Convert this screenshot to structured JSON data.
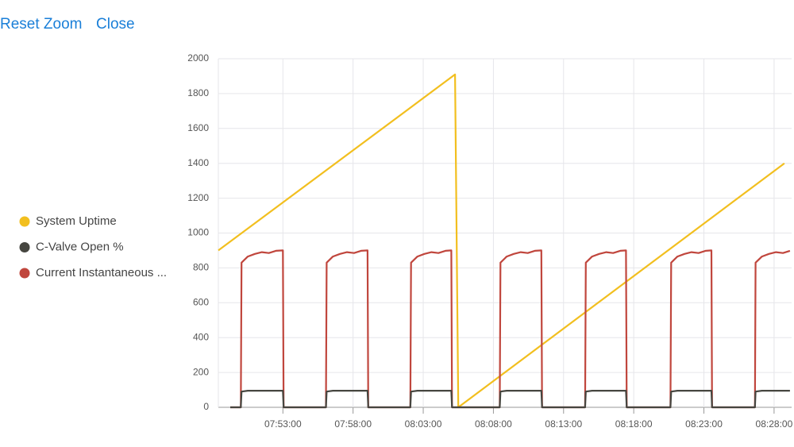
{
  "toolbar": {
    "reset": "Reset Zoom",
    "close": "Close"
  },
  "chart_data": {
    "type": "line",
    "grid": true,
    "legend": "left",
    "xlim": [
      "07:48:24",
      "08:29:15"
    ],
    "xticks": [
      "07:53:00",
      "07:58:00",
      "08:03:00",
      "08:08:00",
      "08:13:00",
      "08:18:00",
      "08:23:00",
      "08:28:00"
    ],
    "ylim": [
      0,
      2000
    ],
    "yticks": [
      0,
      200,
      400,
      600,
      800,
      1000,
      1200,
      1400,
      1600,
      1800,
      2000
    ],
    "series": [
      {
        "name": "System Uptime",
        "color": "#f2bf1f",
        "x": [
          "07:48:24",
          "08:05:16",
          "08:05:30",
          "08:28:44"
        ],
        "values": [
          900,
          1910,
          0,
          1400
        ]
      },
      {
        "name": "C-Valve Open %",
        "color": "#464640",
        "x": [
          "07:49:15",
          "07:50:00",
          "07:50:03",
          "07:50:30",
          "07:53:00",
          "07:53:03",
          "07:56:04",
          "07:56:07",
          "07:56:34",
          "07:59:02",
          "07:59:05",
          "08:02:05",
          "08:02:08",
          "08:02:35",
          "08:05:00",
          "08:05:03",
          "08:08:27",
          "08:08:30",
          "08:08:57",
          "08:11:25",
          "08:11:28",
          "08:14:32",
          "08:14:35",
          "08:15:02",
          "08:17:27",
          "08:17:30",
          "08:20:37",
          "08:20:40",
          "08:21:07",
          "08:23:32",
          "08:23:35",
          "08:26:38",
          "08:26:41",
          "08:27:08",
          "08:29:08"
        ],
        "values": [
          0,
          0,
          90,
          95,
          95,
          0,
          0,
          90,
          95,
          95,
          0,
          0,
          90,
          95,
          95,
          0,
          0,
          90,
          95,
          95,
          0,
          0,
          90,
          95,
          95,
          0,
          0,
          90,
          95,
          95,
          0,
          0,
          90,
          95,
          95
        ]
      },
      {
        "name": "Current Instantaneous ...",
        "color": "#c0463d",
        "x": [
          "07:49:15",
          "07:50:00",
          "07:50:03",
          "07:50:30",
          "07:51:00",
          "07:51:30",
          "07:52:00",
          "07:52:30",
          "07:53:00",
          "07:53:03",
          "07:56:04",
          "07:56:07",
          "07:56:34",
          "07:57:04",
          "07:57:34",
          "07:58:04",
          "07:58:34",
          "07:59:02",
          "07:59:05",
          "08:02:05",
          "08:02:08",
          "08:02:35",
          "08:03:05",
          "08:03:35",
          "08:04:05",
          "08:04:35",
          "08:05:00",
          "08:05:03",
          "08:08:27",
          "08:08:30",
          "08:08:57",
          "08:09:27",
          "08:09:57",
          "08:10:27",
          "08:10:57",
          "08:11:25",
          "08:11:28",
          "08:14:32",
          "08:14:35",
          "08:15:02",
          "08:15:32",
          "08:16:02",
          "08:16:32",
          "08:17:02",
          "08:17:27",
          "08:17:30",
          "08:20:37",
          "08:20:40",
          "08:21:07",
          "08:21:37",
          "08:22:07",
          "08:22:37",
          "08:23:07",
          "08:23:32",
          "08:23:35",
          "08:26:38",
          "08:26:41",
          "08:27:08",
          "08:27:38",
          "08:28:08",
          "08:28:38",
          "08:29:08"
        ],
        "values": [
          0,
          0,
          830,
          865,
          880,
          890,
          885,
          898,
          900,
          0,
          0,
          830,
          865,
          880,
          890,
          885,
          898,
          900,
          0,
          0,
          830,
          865,
          880,
          890,
          885,
          898,
          900,
          0,
          0,
          830,
          865,
          880,
          890,
          885,
          898,
          900,
          0,
          0,
          830,
          865,
          880,
          890,
          885,
          898,
          900,
          0,
          0,
          830,
          865,
          880,
          890,
          885,
          898,
          900,
          0,
          0,
          830,
          865,
          880,
          890,
          885,
          898
        ]
      }
    ]
  }
}
